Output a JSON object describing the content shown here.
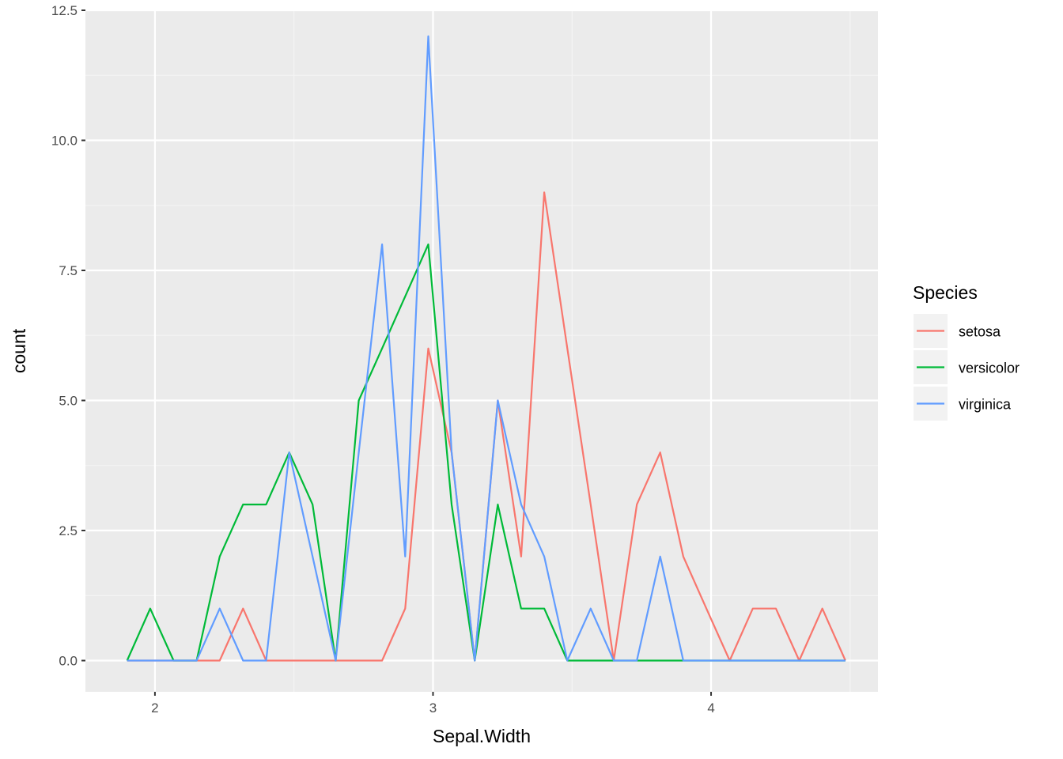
{
  "chart_data": {
    "type": "line",
    "title": "",
    "xlabel": "Sepal.Width",
    "ylabel": "count",
    "xlim": [
      1.75,
      4.6
    ],
    "ylim": [
      -0.6,
      12.5
    ],
    "x_ticks": [
      {
        "value": 2,
        "label": "2"
      },
      {
        "value": 3,
        "label": "3"
      },
      {
        "value": 4,
        "label": "4"
      }
    ],
    "y_ticks": [
      {
        "value": 0,
        "label": "0.0"
      },
      {
        "value": 2.5,
        "label": "2.5"
      },
      {
        "value": 5,
        "label": "5.0"
      },
      {
        "value": 7.5,
        "label": "7.5"
      },
      {
        "value": 10,
        "label": "10.0"
      },
      {
        "value": 12.5,
        "label": "12.5"
      }
    ],
    "grid": true,
    "legend": {
      "title": "Species",
      "position": "right"
    },
    "x": [
      1.9,
      1.983,
      2.067,
      2.15,
      2.233,
      2.317,
      2.4,
      2.483,
      2.567,
      2.65,
      2.733,
      2.817,
      2.9,
      2.983,
      3.067,
      3.15,
      3.233,
      3.317,
      3.4,
      3.483,
      3.567,
      3.65,
      3.733,
      3.817,
      3.9,
      3.983,
      4.067,
      4.15,
      4.233,
      4.317,
      4.4,
      4.483
    ],
    "series": [
      {
        "name": "setosa",
        "color": "#F8766D",
        "values": [
          0,
          0,
          0,
          0,
          0,
          1,
          0,
          0,
          0,
          0,
          0,
          0,
          1,
          6,
          4,
          0,
          5,
          2,
          9,
          6,
          3,
          0,
          3,
          4,
          2,
          1,
          0,
          1,
          1,
          0,
          1,
          0
        ]
      },
      {
        "name": "versicolor",
        "color": "#00BA38",
        "values": [
          0,
          1,
          0,
          0,
          2,
          3,
          3,
          4,
          3,
          0,
          5,
          6,
          7,
          8,
          3,
          0,
          3,
          1,
          1,
          0,
          0,
          0,
          0,
          0,
          0,
          0,
          0,
          0,
          0,
          0,
          0,
          0
        ]
      },
      {
        "name": "virginica",
        "color": "#619CFF",
        "values": [
          0,
          0,
          0,
          0,
          1,
          0,
          0,
          4,
          2,
          0,
          4,
          8,
          2,
          12,
          4,
          0,
          5,
          3,
          2,
          0,
          1,
          0,
          0,
          2,
          0,
          0,
          0,
          0,
          0,
          0,
          0,
          0
        ]
      }
    ]
  },
  "colors": {
    "panel_background": "#EBEBEB",
    "grid_major": "#FFFFFF",
    "grid_minor": "#F5F5F5",
    "tick_text": "#4D4D4D",
    "legend_key_background": "#F2F2F2"
  }
}
